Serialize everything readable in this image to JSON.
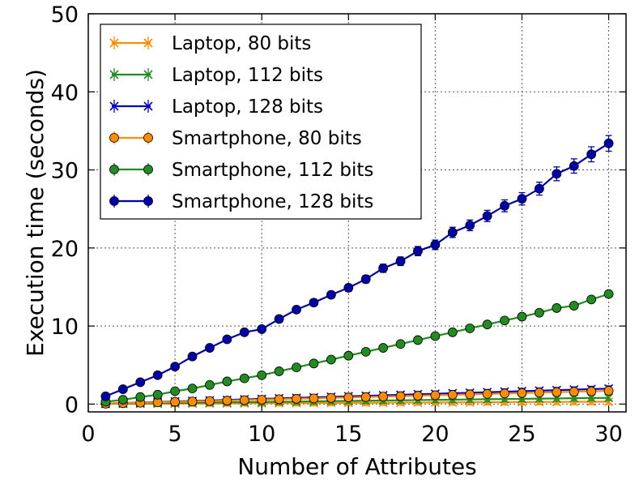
{
  "chart_data": {
    "type": "line",
    "title": "",
    "xlabel": "Number of Attributes",
    "ylabel": "Execution time (seconds)",
    "xlim": [
      0,
      31
    ],
    "ylim": [
      -1,
      50
    ],
    "xticks": [
      0,
      5,
      10,
      15,
      20,
      25,
      30
    ],
    "yticks": [
      0,
      10,
      20,
      30,
      40,
      50
    ],
    "grid": true,
    "legend_position": "top-left",
    "x": [
      1,
      2,
      3,
      4,
      5,
      6,
      7,
      8,
      9,
      10,
      11,
      12,
      13,
      14,
      15,
      16,
      17,
      18,
      19,
      20,
      21,
      22,
      23,
      24,
      25,
      26,
      27,
      28,
      29,
      30
    ],
    "series": [
      {
        "name": "Laptop, 80 bits",
        "color": "#ff8c00",
        "marker": "x",
        "values": [
          0.02,
          0.03,
          0.04,
          0.05,
          0.06,
          0.07,
          0.08,
          0.09,
          0.1,
          0.11,
          0.12,
          0.13,
          0.14,
          0.15,
          0.16,
          0.17,
          0.18,
          0.19,
          0.2,
          0.21,
          0.22,
          0.23,
          0.24,
          0.25,
          0.26,
          0.27,
          0.28,
          0.29,
          0.3,
          0.31
        ]
      },
      {
        "name": "Laptop, 112 bits",
        "color": "#228b22",
        "marker": "x",
        "values": [
          0.03,
          0.06,
          0.08,
          0.11,
          0.14,
          0.16,
          0.19,
          0.22,
          0.24,
          0.27,
          0.3,
          0.32,
          0.35,
          0.38,
          0.4,
          0.43,
          0.46,
          0.48,
          0.51,
          0.54,
          0.56,
          0.59,
          0.62,
          0.64,
          0.67,
          0.7,
          0.72,
          0.75,
          0.78,
          0.8
        ]
      },
      {
        "name": "Laptop, 128 bits",
        "color": "#0000cd",
        "marker": "x",
        "values": [
          0.07,
          0.13,
          0.2,
          0.26,
          0.33,
          0.4,
          0.46,
          0.53,
          0.6,
          0.66,
          0.73,
          0.79,
          0.86,
          0.93,
          0.99,
          1.06,
          1.12,
          1.19,
          1.26,
          1.32,
          1.39,
          1.45,
          1.52,
          1.59,
          1.65,
          1.72,
          1.78,
          1.85,
          1.92,
          1.98
        ]
      },
      {
        "name": "Smartphone, 80 bits",
        "color": "#ff8c00",
        "marker": "o",
        "values": [
          0.05,
          0.11,
          0.17,
          0.22,
          0.28,
          0.34,
          0.39,
          0.45,
          0.51,
          0.56,
          0.62,
          0.68,
          0.73,
          0.79,
          0.85,
          0.9,
          0.96,
          1.02,
          1.07,
          1.13,
          1.19,
          1.24,
          1.3,
          1.36,
          1.41,
          1.47,
          1.53,
          1.58,
          1.64,
          1.7
        ]
      },
      {
        "name": "Smartphone, 112 bits",
        "color": "#228b22",
        "marker": "o",
        "values": [
          0.3,
          0.55,
          0.9,
          1.2,
          1.65,
          2.0,
          2.45,
          2.9,
          3.3,
          3.7,
          4.2,
          4.7,
          5.2,
          5.7,
          6.2,
          6.7,
          7.2,
          7.7,
          8.2,
          8.7,
          9.2,
          9.7,
          10.2,
          10.7,
          11.2,
          11.7,
          12.3,
          12.6,
          13.4,
          14.1
        ]
      },
      {
        "name": "Smartphone, 128 bits",
        "color": "#0000aa",
        "marker": "o",
        "values": [
          1.0,
          1.9,
          2.8,
          3.7,
          4.8,
          6.1,
          7.2,
          8.3,
          9.2,
          9.6,
          10.9,
          12.1,
          13.0,
          14.0,
          14.9,
          16.0,
          17.4,
          18.3,
          19.6,
          20.4,
          22.0,
          22.9,
          24.1,
          25.4,
          26.3,
          27.6,
          29.5,
          30.5,
          32.0,
          33.4
        ]
      }
    ]
  }
}
